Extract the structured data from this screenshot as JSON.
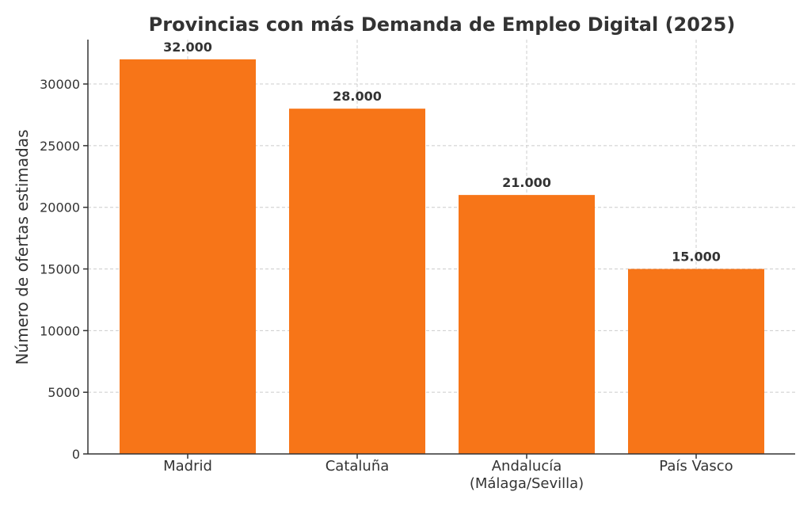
{
  "chart_data": {
    "type": "bar",
    "title": "Provincias con más Demanda de Empleo Digital (2025)",
    "xlabel": "",
    "ylabel": "Número de ofertas estimadas",
    "categories": [
      "Madrid",
      "Cataluña",
      "Andalucía\n(Málaga/Sevilla)",
      "País Vasco"
    ],
    "values": [
      32000,
      28000,
      21000,
      15000
    ],
    "data_labels": [
      "32.000",
      "28.000",
      "21.000",
      "15.000"
    ],
    "ylim": [
      0,
      33600
    ],
    "yticks": [
      0,
      5000,
      10000,
      15000,
      20000,
      25000,
      30000
    ],
    "grid": true,
    "bar_color": "#f77518",
    "grid_color": "#cccccc",
    "text_color": "#333333"
  }
}
